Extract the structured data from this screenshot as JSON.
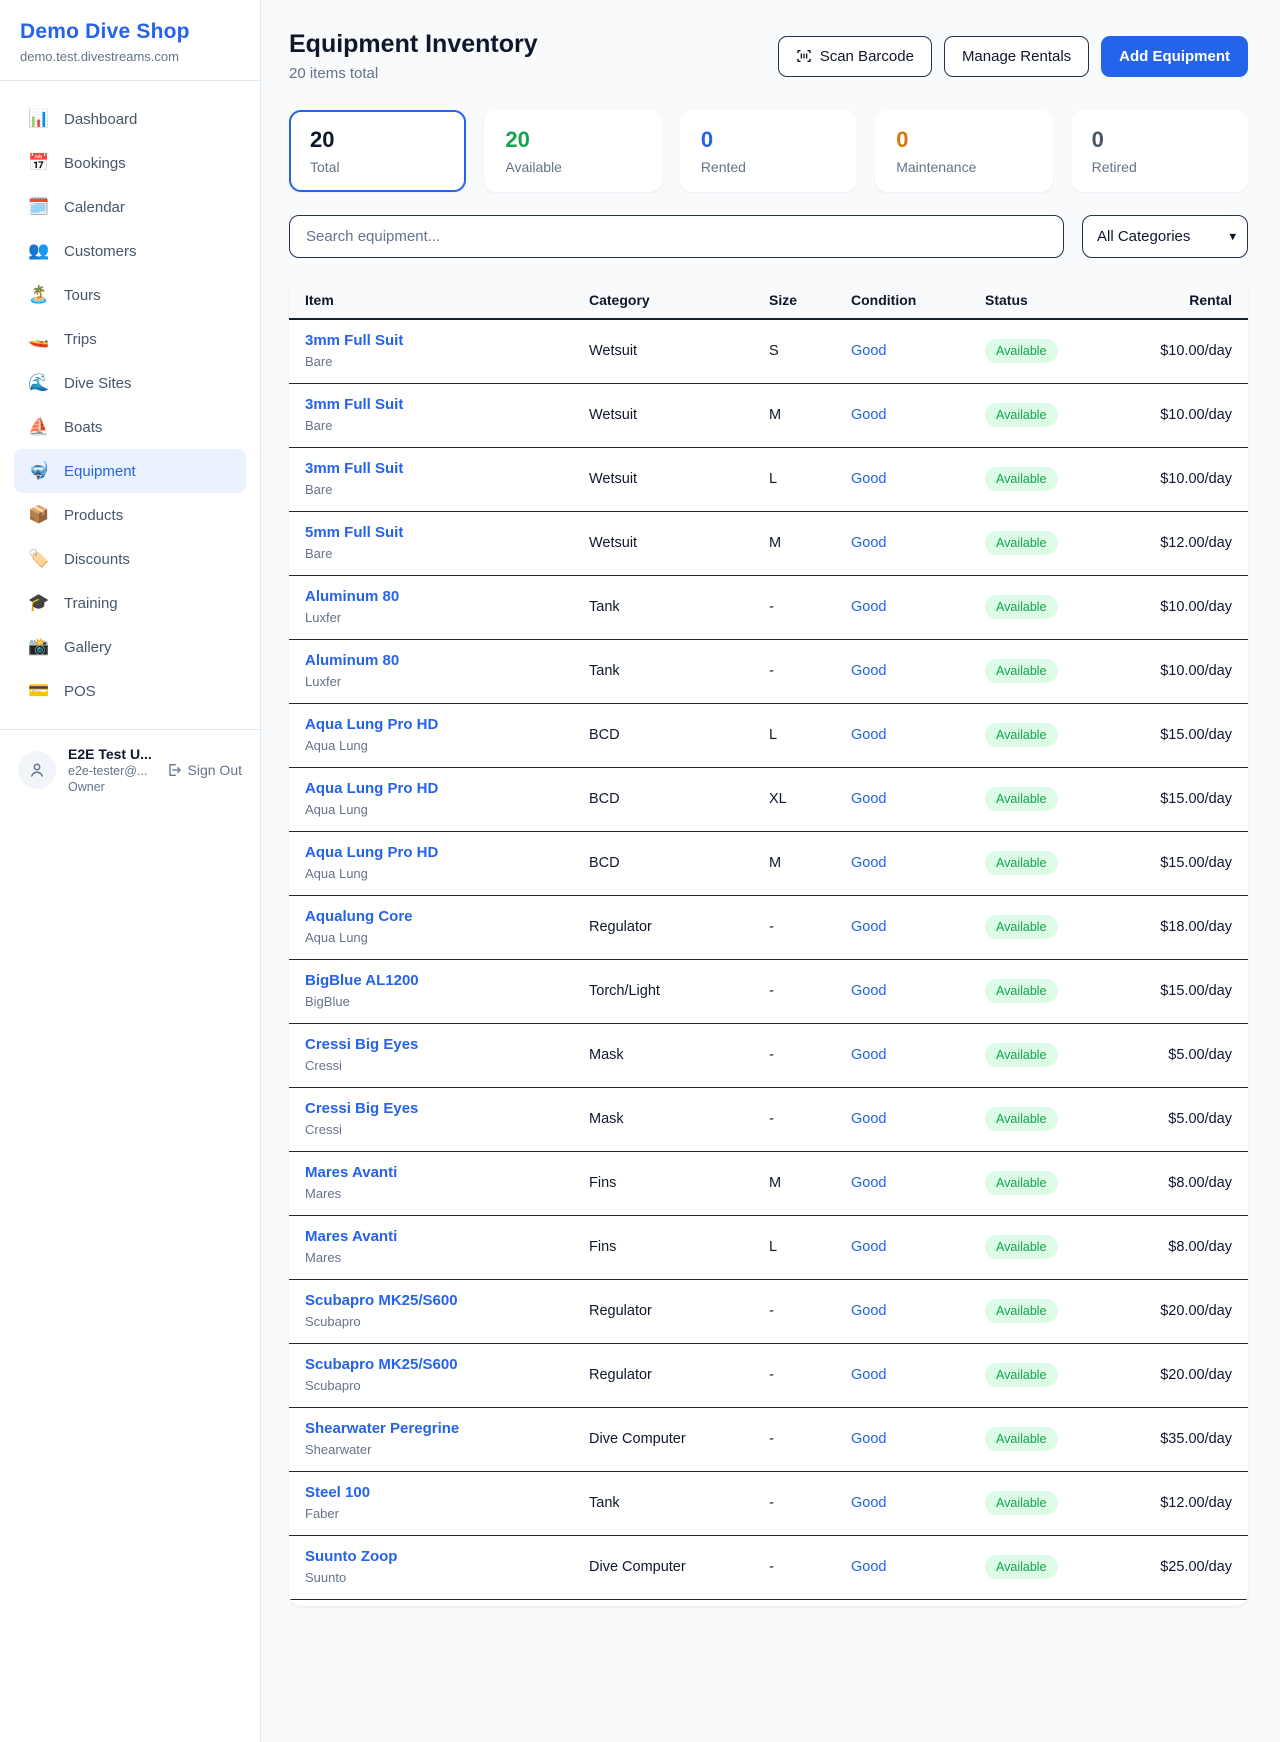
{
  "colors": {
    "accent": "#2563eb",
    "status_available_bg": "#dcfce7",
    "status_available_text": "#16a34a"
  },
  "brand": {
    "name": "Demo Dive Shop",
    "domain": "demo.test.divestreams.com"
  },
  "sidebar": {
    "items": [
      {
        "icon": "📊",
        "icon_name": "dashboard-icon",
        "label": "Dashboard",
        "active": false
      },
      {
        "icon": "📅",
        "icon_name": "bookings-icon",
        "label": "Bookings",
        "active": false
      },
      {
        "icon": "🗓️",
        "icon_name": "calendar-icon",
        "label": "Calendar",
        "active": false
      },
      {
        "icon": "👥",
        "icon_name": "customers-icon",
        "label": "Customers",
        "active": false
      },
      {
        "icon": "🏝️",
        "icon_name": "tours-icon",
        "label": "Tours",
        "active": false
      },
      {
        "icon": "🚤",
        "icon_name": "trips-icon",
        "label": "Trips",
        "active": false
      },
      {
        "icon": "🌊",
        "icon_name": "dive-sites-icon",
        "label": "Dive Sites",
        "active": false
      },
      {
        "icon": "⛵",
        "icon_name": "boats-icon",
        "label": "Boats",
        "active": false
      },
      {
        "icon": "🤿",
        "icon_name": "equipment-icon",
        "label": "Equipment",
        "active": true
      },
      {
        "icon": "📦",
        "icon_name": "products-icon",
        "label": "Products",
        "active": false
      },
      {
        "icon": "🏷️",
        "icon_name": "discounts-icon",
        "label": "Discounts",
        "active": false
      },
      {
        "icon": "🎓",
        "icon_name": "training-icon",
        "label": "Training",
        "active": false
      },
      {
        "icon": "📸",
        "icon_name": "gallery-icon",
        "label": "Gallery",
        "active": false
      },
      {
        "icon": "💳",
        "icon_name": "pos-icon",
        "label": "POS",
        "active": false
      }
    ]
  },
  "user": {
    "name": "E2E Test U...",
    "email": "e2e-tester@...",
    "role": "Owner",
    "sign_out_label": "Sign Out"
  },
  "header": {
    "title": "Equipment Inventory",
    "subtitle": "20 items total",
    "scan_barcode_label": "Scan Barcode",
    "manage_rentals_label": "Manage Rentals",
    "add_equipment_label": "Add Equipment"
  },
  "stats": [
    {
      "value": "20",
      "label": "Total",
      "color": "#0f172a",
      "selected": true
    },
    {
      "value": "20",
      "label": "Available",
      "color": "#16a34a",
      "selected": false
    },
    {
      "value": "0",
      "label": "Rented",
      "color": "#2563eb",
      "selected": false
    },
    {
      "value": "0",
      "label": "Maintenance",
      "color": "#d97706",
      "selected": false
    },
    {
      "value": "0",
      "label": "Retired",
      "color": "#475569",
      "selected": false
    }
  ],
  "filters": {
    "search_placeholder": "Search equipment...",
    "category_selected": "All Categories"
  },
  "table": {
    "columns": [
      "Item",
      "Category",
      "Size",
      "Condition",
      "Status",
      "Rental"
    ],
    "rows": [
      {
        "name": "3mm Full Suit",
        "brand": "Bare",
        "category": "Wetsuit",
        "size": "S",
        "condition": "Good",
        "status": "Available",
        "rental": "$10.00/day"
      },
      {
        "name": "3mm Full Suit",
        "brand": "Bare",
        "category": "Wetsuit",
        "size": "M",
        "condition": "Good",
        "status": "Available",
        "rental": "$10.00/day"
      },
      {
        "name": "3mm Full Suit",
        "brand": "Bare",
        "category": "Wetsuit",
        "size": "L",
        "condition": "Good",
        "status": "Available",
        "rental": "$10.00/day"
      },
      {
        "name": "5mm Full Suit",
        "brand": "Bare",
        "category": "Wetsuit",
        "size": "M",
        "condition": "Good",
        "status": "Available",
        "rental": "$12.00/day"
      },
      {
        "name": "Aluminum 80",
        "brand": "Luxfer",
        "category": "Tank",
        "size": "-",
        "condition": "Good",
        "status": "Available",
        "rental": "$10.00/day"
      },
      {
        "name": "Aluminum 80",
        "brand": "Luxfer",
        "category": "Tank",
        "size": "-",
        "condition": "Good",
        "status": "Available",
        "rental": "$10.00/day"
      },
      {
        "name": "Aqua Lung Pro HD",
        "brand": "Aqua Lung",
        "category": "BCD",
        "size": "L",
        "condition": "Good",
        "status": "Available",
        "rental": "$15.00/day"
      },
      {
        "name": "Aqua Lung Pro HD",
        "brand": "Aqua Lung",
        "category": "BCD",
        "size": "XL",
        "condition": "Good",
        "status": "Available",
        "rental": "$15.00/day"
      },
      {
        "name": "Aqua Lung Pro HD",
        "brand": "Aqua Lung",
        "category": "BCD",
        "size": "M",
        "condition": "Good",
        "status": "Available",
        "rental": "$15.00/day"
      },
      {
        "name": "Aqualung Core",
        "brand": "Aqua Lung",
        "category": "Regulator",
        "size": "-",
        "condition": "Good",
        "status": "Available",
        "rental": "$18.00/day"
      },
      {
        "name": "BigBlue AL1200",
        "brand": "BigBlue",
        "category": "Torch/Light",
        "size": "-",
        "condition": "Good",
        "status": "Available",
        "rental": "$15.00/day"
      },
      {
        "name": "Cressi Big Eyes",
        "brand": "Cressi",
        "category": "Mask",
        "size": "-",
        "condition": "Good",
        "status": "Available",
        "rental": "$5.00/day"
      },
      {
        "name": "Cressi Big Eyes",
        "brand": "Cressi",
        "category": "Mask",
        "size": "-",
        "condition": "Good",
        "status": "Available",
        "rental": "$5.00/day"
      },
      {
        "name": "Mares Avanti",
        "brand": "Mares",
        "category": "Fins",
        "size": "M",
        "condition": "Good",
        "status": "Available",
        "rental": "$8.00/day"
      },
      {
        "name": "Mares Avanti",
        "brand": "Mares",
        "category": "Fins",
        "size": "L",
        "condition": "Good",
        "status": "Available",
        "rental": "$8.00/day"
      },
      {
        "name": "Scubapro MK25/S600",
        "brand": "Scubapro",
        "category": "Regulator",
        "size": "-",
        "condition": "Good",
        "status": "Available",
        "rental": "$20.00/day"
      },
      {
        "name": "Scubapro MK25/S600",
        "brand": "Scubapro",
        "category": "Regulator",
        "size": "-",
        "condition": "Good",
        "status": "Available",
        "rental": "$20.00/day"
      },
      {
        "name": "Shearwater Peregrine",
        "brand": "Shearwater",
        "category": "Dive Computer",
        "size": "-",
        "condition": "Good",
        "status": "Available",
        "rental": "$35.00/day"
      },
      {
        "name": "Steel 100",
        "brand": "Faber",
        "category": "Tank",
        "size": "-",
        "condition": "Good",
        "status": "Available",
        "rental": "$12.00/day"
      },
      {
        "name": "Suunto Zoop",
        "brand": "Suunto",
        "category": "Dive Computer",
        "size": "-",
        "condition": "Good",
        "status": "Available",
        "rental": "$25.00/day"
      }
    ]
  }
}
